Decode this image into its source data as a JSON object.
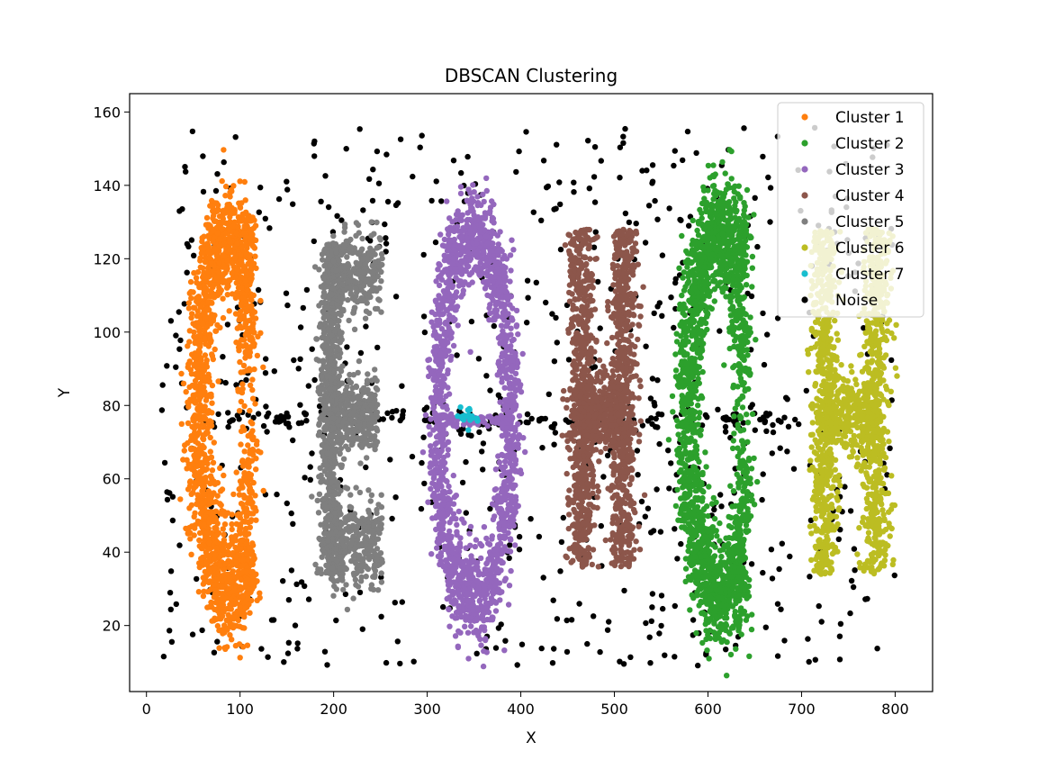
{
  "chart_data": {
    "type": "scatter",
    "title": "DBSCAN Clustering",
    "xlabel": "X",
    "ylabel": "Y",
    "xlim": [
      -18,
      840
    ],
    "ylim": [
      2,
      165
    ],
    "xticks": [
      0,
      100,
      200,
      300,
      400,
      500,
      600,
      700,
      800
    ],
    "yticks": [
      20,
      40,
      60,
      80,
      100,
      120,
      140,
      160
    ],
    "grid": false,
    "legend_position": "top-right",
    "series": [
      {
        "name": "Cluster 1",
        "color": "#ff7f0e",
        "shape": "letter C",
        "center": [
          90,
          78
        ],
        "x_extent": [
          50,
          135
        ],
        "y_extent": [
          24,
          130
        ],
        "approx_points": 1600
      },
      {
        "name": "Cluster 2",
        "color": "#2ca02c",
        "shape": "letter C",
        "center": [
          615,
          78
        ],
        "x_extent": [
          565,
          670
        ],
        "y_extent": [
          22,
          132
        ],
        "approx_points": 1700
      },
      {
        "name": "Cluster 3",
        "color": "#9467bd",
        "shape": "letter O",
        "center": [
          350,
          77
        ],
        "x_extent": [
          300,
          405
        ],
        "y_extent": [
          23,
          128
        ],
        "approx_points": 1700
      },
      {
        "name": "Cluster 4",
        "color": "#8c564b",
        "shape": "letter H",
        "center": [
          485,
          78
        ],
        "x_extent": [
          445,
          525
        ],
        "y_extent": [
          27,
          133
        ],
        "approx_points": 1700
      },
      {
        "name": "Cluster 5",
        "color": "#7f7f7f",
        "shape": "letter E",
        "center": [
          215,
          78
        ],
        "x_extent": [
          180,
          260
        ],
        "y_extent": [
          28,
          130
        ],
        "approx_points": 1600
      },
      {
        "name": "Cluster 6",
        "color": "#bcbd22",
        "shape": "letter H",
        "center": [
          750,
          78
        ],
        "x_extent": [
          708,
          795
        ],
        "y_extent": [
          27,
          132
        ],
        "approx_points": 1500
      },
      {
        "name": "Cluster 7",
        "color": "#17becf",
        "shape": "small blob",
        "center": [
          345,
          77
        ],
        "x_extent": [
          337,
          355
        ],
        "y_extent": [
          75,
          80
        ],
        "approx_points": 20
      },
      {
        "name": "Noise",
        "color": "#000000",
        "shape": "uniform scatter plus horizontal band at y≈76",
        "x_extent": [
          15,
          800
        ],
        "y_extent": [
          9,
          156
        ],
        "approx_points": 900
      }
    ]
  }
}
